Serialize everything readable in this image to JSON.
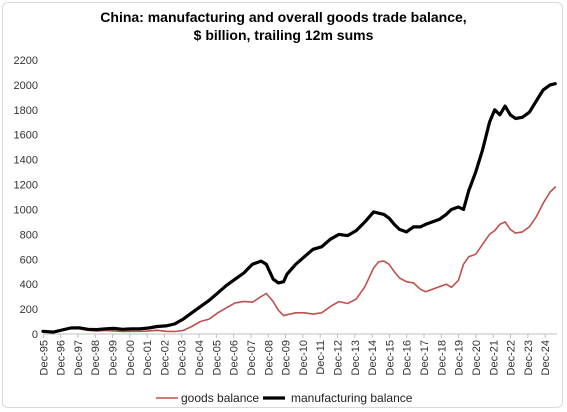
{
  "chart_data": {
    "type": "line",
    "title": "China: manufacturing and overall goods trade balance,",
    "subtitle": "$ billion, trailing 12m sums",
    "xlabel": "",
    "ylabel": "",
    "ylim": [
      0,
      2200
    ],
    "yticks": [
      0,
      200,
      400,
      600,
      800,
      1000,
      1200,
      1400,
      1600,
      1800,
      2000,
      2200
    ],
    "xticks": [
      "Dec-95",
      "Dec-96",
      "Dec-97",
      "Dec-98",
      "Dec-99",
      "Dec-00",
      "Dec-01",
      "Dec-02",
      "Dec-03",
      "Dec-04",
      "Dec-05",
      "Dec-06",
      "Dec-07",
      "Dec-08",
      "Dec-09",
      "Dec-10",
      "Dec-11",
      "Dec-12",
      "Dec-13",
      "Dec-14",
      "Dec-15",
      "Dec-16",
      "Dec-17",
      "Dec-18",
      "Dec-19",
      "Dec-20",
      "Dec-21",
      "Dec-22",
      "Dec-23",
      "Dec-24"
    ],
    "xlim": [
      1995.9,
      2025.6
    ],
    "grid": false,
    "legend": "bottom",
    "series": [
      {
        "name": "goods balance",
        "color": "#c0504d",
        "x": [
          1995.9,
          1996.5,
          1997.0,
          1997.5,
          1998.0,
          1998.5,
          1999.0,
          1999.5,
          2000.0,
          2000.5,
          2001.0,
          2001.5,
          2002.0,
          2002.5,
          2003.0,
          2003.5,
          2004.0,
          2004.5,
          2005.0,
          2005.5,
          2006.0,
          2006.5,
          2007.0,
          2007.5,
          2008.0,
          2008.5,
          2008.8,
          2009.2,
          2009.5,
          2009.8,
          2010.0,
          2010.5,
          2011.0,
          2011.5,
          2012.0,
          2012.5,
          2013.0,
          2013.5,
          2014.0,
          2014.5,
          2015.0,
          2015.3,
          2015.6,
          2015.9,
          2016.2,
          2016.5,
          2016.9,
          2017.3,
          2017.7,
          2018.0,
          2018.4,
          2018.8,
          2019.2,
          2019.5,
          2019.9,
          2020.2,
          2020.5,
          2020.9,
          2021.3,
          2021.7,
          2022.0,
          2022.3,
          2022.6,
          2022.9,
          2023.2,
          2023.6,
          2024.0,
          2024.4,
          2024.8,
          2025.2,
          2025.5
        ],
        "values": [
          18,
          15,
          30,
          45,
          42,
          30,
          25,
          28,
          25,
          20,
          22,
          22,
          25,
          30,
          22,
          20,
          28,
          60,
          100,
          120,
          170,
          210,
          250,
          262,
          255,
          300,
          325,
          260,
          190,
          148,
          155,
          170,
          170,
          160,
          170,
          220,
          260,
          245,
          280,
          380,
          530,
          580,
          585,
          560,
          500,
          450,
          420,
          410,
          360,
          340,
          360,
          380,
          400,
          375,
          430,
          560,
          620,
          640,
          720,
          800,
          830,
          880,
          900,
          840,
          810,
          820,
          860,
          940,
          1050,
          1140,
          1180
        ]
      },
      {
        "name": "manufacturing balance",
        "color": "#000000",
        "x": [
          1995.9,
          1996.5,
          1997.0,
          1997.5,
          1998.0,
          1998.5,
          1999.0,
          1999.5,
          2000.0,
          2000.5,
          2001.0,
          2001.5,
          2002.0,
          2002.5,
          2003.0,
          2003.5,
          2004.0,
          2004.5,
          2005.0,
          2005.5,
          2006.0,
          2006.5,
          2007.0,
          2007.5,
          2008.0,
          2008.5,
          2008.8,
          2009.2,
          2009.5,
          2009.8,
          2010.0,
          2010.5,
          2011.0,
          2011.5,
          2012.0,
          2012.5,
          2013.0,
          2013.5,
          2014.0,
          2014.5,
          2015.0,
          2015.3,
          2015.6,
          2015.9,
          2016.2,
          2016.5,
          2016.9,
          2017.3,
          2017.7,
          2018.0,
          2018.4,
          2018.8,
          2019.2,
          2019.5,
          2019.9,
          2020.2,
          2020.5,
          2020.9,
          2021.3,
          2021.7,
          2022.0,
          2022.3,
          2022.6,
          2022.9,
          2023.2,
          2023.6,
          2024.0,
          2024.4,
          2024.8,
          2025.2,
          2025.5
        ],
        "values": [
          22,
          15,
          32,
          48,
          50,
          38,
          35,
          42,
          45,
          38,
          42,
          42,
          48,
          60,
          65,
          80,
          120,
          170,
          220,
          270,
          330,
          390,
          440,
          490,
          560,
          585,
          560,
          440,
          410,
          420,
          480,
          560,
          620,
          680,
          700,
          760,
          800,
          790,
          830,
          900,
          980,
          970,
          960,
          930,
          880,
          840,
          820,
          860,
          860,
          880,
          900,
          920,
          960,
          1000,
          1020,
          1000,
          1150,
          1300,
          1480,
          1700,
          1800,
          1760,
          1830,
          1760,
          1730,
          1740,
          1780,
          1870,
          1960,
          2000,
          2010
        ]
      }
    ]
  }
}
